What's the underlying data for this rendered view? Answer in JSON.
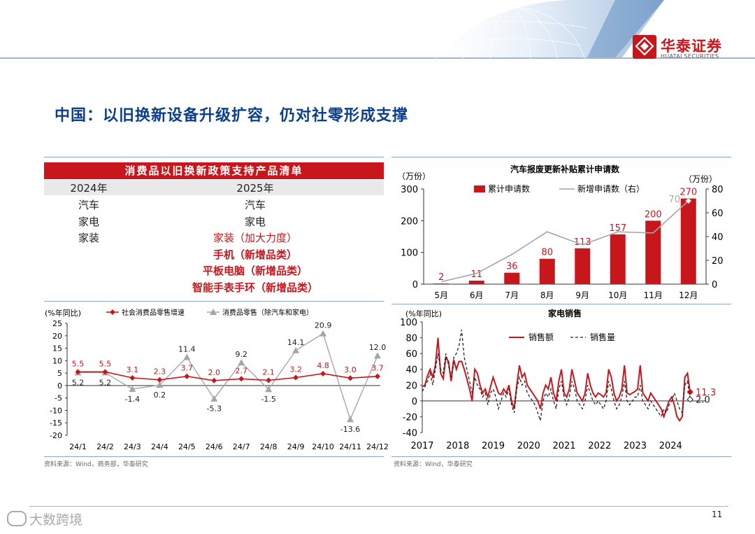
{
  "header": {
    "brand_cn": "华泰证券",
    "brand_en": "HUATAI SECURITIES",
    "accent": "#c8161d"
  },
  "slide": {
    "title": "中国：以旧换新设备升级扩容，仍对社零形成支撑",
    "page": "11",
    "watermark": "大数跨境"
  },
  "table": {
    "title": "消费品以旧换新政策支持产品清单",
    "col_2024": "2024年",
    "col_2025": "2025年",
    "rows": [
      {
        "y2024": "汽车",
        "y2025": "汽车",
        "style": "plain"
      },
      {
        "y2024": "家电",
        "y2025": "家电",
        "style": "plain"
      },
      {
        "y2024": "家装",
        "y2025": "家装（加大力度）",
        "style": "red"
      },
      {
        "y2024": "",
        "y2025": "手机（新增品类）",
        "style": "red-bold"
      },
      {
        "y2024": "",
        "y2025": "平板电脑（新增品类）",
        "style": "red-bold"
      },
      {
        "y2024": "",
        "y2025": "智能手表手环（新增品类）",
        "style": "red-bold"
      }
    ]
  },
  "sources": {
    "left": "资料来源：Wind，商务部，华泰研究",
    "right": "资料来源：Wind，华泰研究"
  },
  "chart_data": [
    {
      "id": "car",
      "type": "bar",
      "title": "汽车报废更新补贴累计申请数",
      "ylabel_left": "（万份）",
      "ylabel_right": "（万份）",
      "categories": [
        "5月",
        "6月",
        "7月",
        "8月",
        "9月",
        "10月",
        "11月",
        "12月"
      ],
      "ylim_left": [
        0,
        300
      ],
      "yticks_left": [
        0,
        100,
        200,
        300
      ],
      "ylim_right": [
        0,
        80
      ],
      "yticks_right": [
        0,
        20,
        40,
        60,
        80
      ],
      "series": [
        {
          "name": "累计申请数",
          "kind": "bar",
          "axis": "left",
          "color": "#c8161d",
          "values": [
            2,
            11,
            36,
            80,
            113,
            157,
            200,
            270
          ],
          "labels": [
            "2",
            "11",
            "36",
            "80",
            "113",
            "157",
            "200",
            "270"
          ]
        },
        {
          "name": "新增申请数（右）",
          "kind": "line",
          "axis": "right",
          "color": "#a6a6a6",
          "values": [
            2,
            9,
            25,
            44,
            33,
            44,
            43,
            70
          ],
          "labels": [
            "",
            "",
            "",
            "",
            "",
            "",
            "",
            "70"
          ]
        }
      ]
    },
    {
      "id": "retail",
      "type": "line",
      "ylabel": "(%年同比)",
      "categories": [
        "24/1",
        "24/2",
        "24/3",
        "24/4",
        "24/5",
        "24/6",
        "24/7",
        "24/8",
        "24/9",
        "24/10",
        "24/11",
        "24/12"
      ],
      "ylim": [
        -20,
        25
      ],
      "yticks": [
        -20,
        -15,
        -10,
        -5,
        0,
        5,
        10,
        15,
        20,
        25
      ],
      "series": [
        {
          "name": "社会消费品零售增速",
          "color": "#c8161d",
          "marker": "diamond",
          "values": [
            5.5,
            5.5,
            3.1,
            2.3,
            3.7,
            2.0,
            2.7,
            2.1,
            3.2,
            4.8,
            3.0,
            3.7
          ],
          "labels": [
            "5.5",
            "5.5",
            "3.1",
            "2.3",
            "3.7",
            "2.0",
            "2.7",
            "2.1",
            "3.2",
            "4.8",
            "3.0",
            "3.7"
          ]
        },
        {
          "name": "消费品零售（除汽车和家电）",
          "color": "#a6a6a6",
          "marker": "triangle",
          "values": [
            5.2,
            5.2,
            -1.4,
            0.2,
            11.4,
            -5.3,
            9.2,
            -1.5,
            14.1,
            20.9,
            -13.6,
            12.0
          ],
          "labels": [
            "5.2",
            "5.2",
            "-1.4",
            "0.2",
            "11.4",
            "-5.3",
            "9.2",
            "-1.5",
            "14.1",
            "20.9",
            "-13.6",
            "12.0"
          ]
        }
      ]
    },
    {
      "id": "appliance",
      "type": "line",
      "title": "家电销售",
      "ylabel": "(%年同比)",
      "x_labels": [
        "2017",
        "2018",
        "2019",
        "2020",
        "2021",
        "2022",
        "2023",
        "2024"
      ],
      "x_start": 2017.0,
      "x_end": 2025.0,
      "ylim": [
        -40,
        100
      ],
      "yticks": [
        -40,
        -20,
        0,
        20,
        40,
        60,
        80,
        100
      ],
      "series": [
        {
          "name": "销售额",
          "color": "#c8161d",
          "dash": "solid",
          "values": [
            18,
            20,
            32,
            40,
            30,
            45,
            80,
            35,
            28,
            55,
            50,
            25,
            52,
            40,
            50,
            50,
            40,
            28,
            15,
            0,
            40,
            35,
            20,
            10,
            15,
            5,
            18,
            30,
            20,
            10,
            8,
            15,
            10,
            20,
            0,
            -10,
            20,
            45,
            30,
            35,
            20,
            15,
            10,
            5,
            0,
            -10,
            10,
            20,
            15,
            30,
            10,
            0,
            25,
            40,
            10,
            5,
            15,
            40,
            25,
            10,
            5,
            0,
            10,
            35,
            20,
            10,
            5,
            10,
            8,
            5,
            10,
            40,
            30,
            10,
            0,
            5,
            15,
            45,
            10,
            8,
            10,
            12,
            15,
            45,
            10,
            5,
            0,
            10,
            5,
            0,
            -5,
            -10,
            -20,
            -10,
            0,
            5,
            -5,
            -20,
            -25,
            -20,
            30,
            35,
            11.3
          ],
          "last_label": "11.3"
        },
        {
          "name": "销售量",
          "color": "#222222",
          "dash": "dashed",
          "values": [
            12,
            18,
            25,
            35,
            20,
            40,
            60,
            40,
            35,
            60,
            45,
            30,
            55,
            60,
            70,
            90,
            55,
            40,
            25,
            10,
            30,
            20,
            15,
            5,
            10,
            -5,
            10,
            15,
            5,
            -10,
            0,
            10,
            5,
            15,
            -5,
            -15,
            15,
            30,
            20,
            25,
            10,
            5,
            0,
            -5,
            -15,
            -25,
            0,
            10,
            5,
            15,
            0,
            -10,
            15,
            25,
            5,
            -5,
            5,
            25,
            15,
            0,
            -5,
            -10,
            0,
            20,
            10,
            0,
            -5,
            0,
            -5,
            -10,
            0,
            25,
            15,
            0,
            -10,
            -5,
            5,
            25,
            0,
            -5,
            0,
            5,
            5,
            20,
            0,
            -5,
            -10,
            0,
            -5,
            -10,
            -15,
            -20,
            -10,
            -15,
            -5,
            0,
            10,
            0,
            -10,
            -15,
            20,
            25,
            2.0
          ],
          "last_label": "2.0"
        }
      ]
    }
  ]
}
